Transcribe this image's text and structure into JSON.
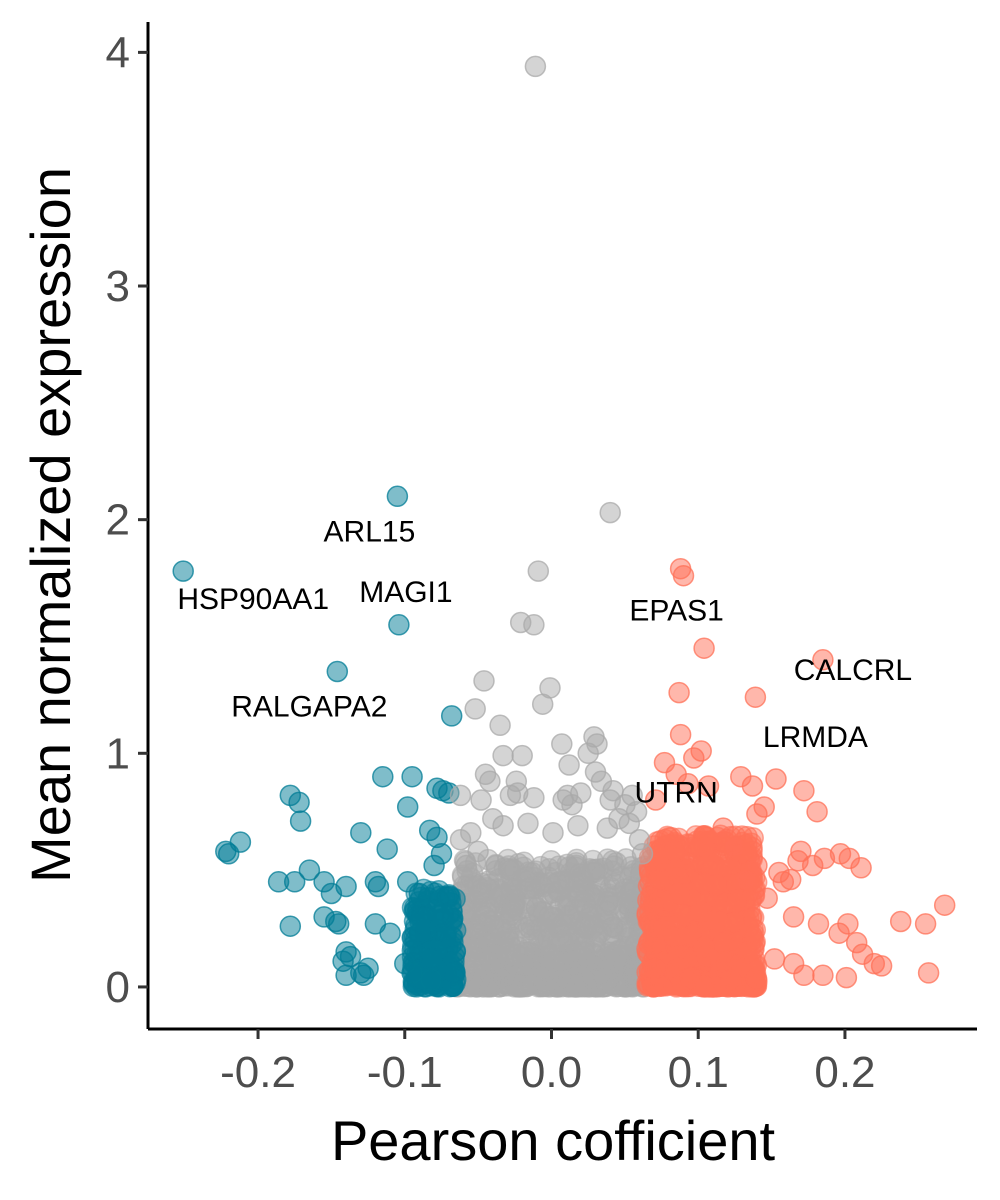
{
  "chart_data": {
    "type": "scatter",
    "title": "",
    "xlabel": "Pearson cofficient",
    "ylabel": "Mean normalized expression",
    "xlim": [
      -0.275,
      0.29
    ],
    "ylim": [
      -0.18,
      4.13
    ],
    "xticks": [
      -0.2,
      -0.1,
      0.0,
      0.1,
      0.2
    ],
    "xtick_labels": [
      "-0.2",
      "-0.1",
      "0.0",
      "0.1",
      "0.2"
    ],
    "yticks": [
      0,
      1,
      2,
      3,
      4
    ],
    "ytick_labels": [
      "0",
      "1",
      "2",
      "3",
      "4"
    ],
    "grid": false,
    "legend": "none",
    "colors": {
      "negative": "#007C96",
      "neutral": "#A9A9A9",
      "positive": "#FF7057"
    },
    "series": [
      {
        "group": "negative",
        "points": [
          [
            -0.251,
            1.78
          ],
          [
            -0.105,
            2.1
          ],
          [
            -0.104,
            1.55
          ],
          [
            -0.146,
            1.35
          ],
          [
            -0.068,
            1.16
          ],
          [
            -0.115,
            0.9
          ],
          [
            -0.095,
            0.9
          ],
          [
            -0.098,
            0.77
          ],
          [
            -0.078,
            0.85
          ],
          [
            -0.074,
            0.84
          ],
          [
            -0.07,
            0.83
          ],
          [
            -0.178,
            0.82
          ],
          [
            -0.172,
            0.79
          ],
          [
            -0.171,
            0.71
          ],
          [
            -0.212,
            0.62
          ],
          [
            -0.222,
            0.58
          ],
          [
            -0.22,
            0.57
          ],
          [
            -0.13,
            0.66
          ],
          [
            -0.112,
            0.59
          ],
          [
            -0.083,
            0.67
          ],
          [
            -0.078,
            0.64
          ],
          [
            -0.075,
            0.57
          ],
          [
            -0.08,
            0.52
          ],
          [
            -0.165,
            0.5
          ],
          [
            -0.155,
            0.45
          ],
          [
            -0.15,
            0.4
          ],
          [
            -0.14,
            0.43
          ],
          [
            -0.175,
            0.45
          ],
          [
            -0.186,
            0.45
          ],
          [
            -0.12,
            0.45
          ],
          [
            -0.118,
            0.43
          ],
          [
            -0.098,
            0.45
          ],
          [
            -0.09,
            0.4
          ],
          [
            -0.155,
            0.3
          ],
          [
            -0.147,
            0.28
          ],
          [
            -0.145,
            0.27
          ],
          [
            -0.178,
            0.26
          ],
          [
            -0.12,
            0.27
          ],
          [
            -0.11,
            0.23
          ],
          [
            -0.14,
            0.15
          ],
          [
            -0.137,
            0.13
          ],
          [
            -0.142,
            0.11
          ],
          [
            -0.125,
            0.08
          ],
          [
            -0.13,
            0.06
          ],
          [
            -0.14,
            0.05
          ],
          [
            -0.128,
            0.05
          ],
          [
            -0.1,
            0.1
          ],
          [
            -0.095,
            0.06
          ],
          [
            -0.082,
            0.03
          ]
        ]
      },
      {
        "group": "neutral",
        "points": [
          [
            -0.011,
            3.94
          ],
          [
            0.04,
            2.03
          ],
          [
            -0.009,
            1.78
          ],
          [
            -0.021,
            1.56
          ],
          [
            -0.012,
            1.55
          ],
          [
            -0.001,
            1.28
          ],
          [
            -0.046,
            1.31
          ],
          [
            -0.052,
            1.19
          ],
          [
            -0.035,
            1.12
          ],
          [
            -0.006,
            1.21
          ],
          [
            0.007,
            1.04
          ],
          [
            0.029,
            1.07
          ],
          [
            0.031,
            1.04
          ],
          [
            -0.033,
            0.99
          ],
          [
            -0.02,
            0.99
          ],
          [
            -0.045,
            0.91
          ],
          [
            -0.042,
            0.88
          ],
          [
            -0.024,
            0.88
          ],
          [
            0.012,
            0.95
          ],
          [
            0.025,
            1.0
          ],
          [
            0.03,
            0.92
          ],
          [
            0.034,
            0.88
          ],
          [
            0.04,
            0.8
          ],
          [
            0.042,
            0.84
          ],
          [
            0.02,
            0.83
          ],
          [
            0.011,
            0.82
          ],
          [
            0.014,
            0.78
          ],
          [
            0.008,
            0.8
          ],
          [
            -0.023,
            0.83
          ],
          [
            -0.012,
            0.81
          ],
          [
            -0.062,
            0.82
          ],
          [
            -0.048,
            0.8
          ],
          [
            -0.04,
            0.72
          ],
          [
            -0.028,
            0.82
          ],
          [
            0.046,
            0.72
          ],
          [
            0.05,
            0.78
          ],
          [
            0.053,
            0.7
          ],
          [
            0.055,
            0.82
          ],
          [
            0.058,
            0.75
          ],
          [
            0.06,
            0.63
          ],
          [
            -0.062,
            0.63
          ],
          [
            -0.055,
            0.66
          ],
          [
            -0.05,
            0.58
          ],
          [
            -0.033,
            0.69
          ],
          [
            -0.016,
            0.7
          ],
          [
            0.001,
            0.66
          ],
          [
            0.018,
            0.69
          ],
          [
            0.038,
            0.68
          ],
          [
            0.062,
            0.57
          ],
          [
            -0.058,
            0.52
          ]
        ],
        "dense_region": {
          "x": [
            -0.065,
            0.065
          ],
          "y": [
            0.0,
            0.55
          ]
        }
      },
      {
        "group": "positive",
        "points": [
          [
            0.088,
            1.79
          ],
          [
            0.09,
            1.76
          ],
          [
            0.104,
            1.45
          ],
          [
            0.185,
            1.4
          ],
          [
            0.087,
            1.26
          ],
          [
            0.139,
            1.24
          ],
          [
            0.088,
            1.08
          ],
          [
            0.097,
            0.98
          ],
          [
            0.102,
            1.01
          ],
          [
            0.077,
            0.96
          ],
          [
            0.085,
            0.91
          ],
          [
            0.093,
            0.87
          ],
          [
            0.107,
            0.86
          ],
          [
            0.129,
            0.9
          ],
          [
            0.137,
            0.86
          ],
          [
            0.153,
            0.89
          ],
          [
            0.172,
            0.84
          ],
          [
            0.145,
            0.77
          ],
          [
            0.14,
            0.74
          ],
          [
            0.181,
            0.75
          ],
          [
            0.071,
            0.8
          ],
          [
            0.117,
            0.68
          ],
          [
            0.125,
            0.6
          ],
          [
            0.14,
            0.52
          ],
          [
            0.155,
            0.49
          ],
          [
            0.168,
            0.54
          ],
          [
            0.17,
            0.58
          ],
          [
            0.178,
            0.52
          ],
          [
            0.186,
            0.55
          ],
          [
            0.197,
            0.57
          ],
          [
            0.203,
            0.55
          ],
          [
            0.211,
            0.51
          ],
          [
            0.133,
            0.46
          ],
          [
            0.158,
            0.45
          ],
          [
            0.163,
            0.46
          ],
          [
            0.147,
            0.38
          ],
          [
            0.165,
            0.3
          ],
          [
            0.182,
            0.27
          ],
          [
            0.196,
            0.23
          ],
          [
            0.202,
            0.27
          ],
          [
            0.208,
            0.19
          ],
          [
            0.212,
            0.14
          ],
          [
            0.22,
            0.1
          ],
          [
            0.225,
            0.09
          ],
          [
            0.238,
            0.28
          ],
          [
            0.255,
            0.27
          ],
          [
            0.268,
            0.35
          ],
          [
            0.257,
            0.06
          ],
          [
            0.201,
            0.04
          ],
          [
            0.185,
            0.05
          ],
          [
            0.165,
            0.1
          ],
          [
            0.172,
            0.05
          ],
          [
            0.152,
            0.12
          ]
        ],
        "dense_region": {
          "x": [
            0.065,
            0.14
          ],
          "y": [
            0.0,
            0.65
          ]
        }
      }
    ],
    "annotations": [
      {
        "text": "ARL15",
        "x": -0.105,
        "y": 2.1
      },
      {
        "text": "HSP90AA1",
        "x": -0.251,
        "y": 1.78
      },
      {
        "text": "MAGI1",
        "x": -0.104,
        "y": 1.55
      },
      {
        "text": "RALGAPA2",
        "x": -0.146,
        "y": 1.35
      },
      {
        "text": "EPAS1",
        "x": 0.088,
        "y": 1.79
      },
      {
        "text": "CALCRL",
        "x": 0.185,
        "y": 1.4
      },
      {
        "text": "LRMDA",
        "x": 0.139,
        "y": 1.24
      },
      {
        "text": "UTRN",
        "x": 0.085,
        "y": 0.91
      }
    ]
  }
}
